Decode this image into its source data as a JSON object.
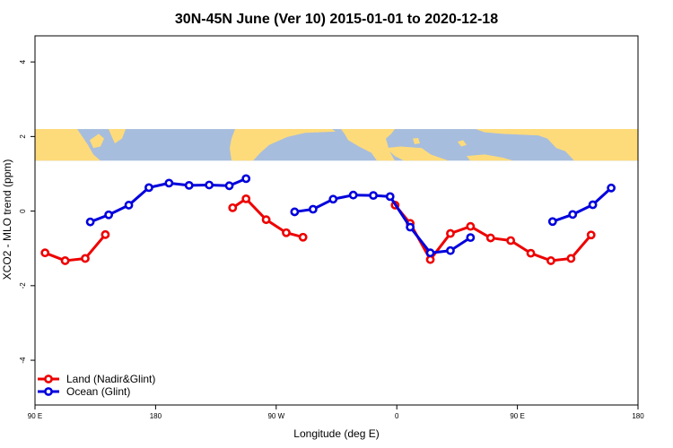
{
  "chart_data": {
    "type": "line",
    "title": "30N-45N June (Ver 10)   2015-01-01 to 2020-12-18",
    "xlabel": "Longitude (deg E)",
    "ylabel": "XCO2 - MLO trend (ppm)",
    "xlim": [
      90,
      450
    ],
    "ylim": [
      -5.2,
      4.7
    ],
    "x_ticks": [
      {
        "value": 90,
        "label": "90 E"
      },
      {
        "value": 162,
        "label": "180"
      },
      {
        "value": 234,
        "label": "90 W"
      },
      {
        "value": 306,
        "label": "0"
      },
      {
        "value": 378,
        "label": "90 E"
      },
      {
        "value": 450,
        "label": "180"
      }
    ],
    "y_ticks": [
      {
        "value": -4,
        "label": "-4"
      },
      {
        "value": -2,
        "label": "-2"
      },
      {
        "value": 0,
        "label": "0"
      },
      {
        "value": 2,
        "label": "2"
      },
      {
        "value": 4,
        "label": "4"
      }
    ],
    "map_band": {
      "ymin": 1.35,
      "ymax": 2.2,
      "ocean_color": "#a7bddd",
      "land_color": "#fedb7a"
    },
    "grid": false,
    "legend_position": "bottom-left",
    "series": [
      {
        "name": "Land (Nadir&Glint)",
        "color": "#ee0000",
        "segments": [
          [
            [
              96,
              -1.12
            ],
            [
              108,
              -1.33
            ],
            [
              120,
              -1.27
            ],
            [
              132,
              -0.63
            ]
          ],
          [
            [
              208,
              0.09
            ],
            [
              216,
              0.33
            ],
            [
              228,
              -0.23
            ],
            [
              240,
              -0.58
            ],
            [
              250,
              -0.7
            ]
          ],
          [
            [
              305,
              0.16
            ],
            [
              314,
              -0.33
            ],
            [
              326,
              -1.3
            ],
            [
              338,
              -0.6
            ],
            [
              350,
              -0.41
            ],
            [
              362,
              -0.72
            ],
            [
              374,
              -0.79
            ],
            [
              386,
              -1.13
            ],
            [
              398,
              -1.33
            ],
            [
              410,
              -1.27
            ],
            [
              422,
              -0.64
            ]
          ]
        ]
      },
      {
        "name": "Ocean (Glint)",
        "color": "#0000dd",
        "segments": [
          [
            [
              123,
              -0.29
            ],
            [
              134,
              -0.1
            ],
            [
              146,
              0.16
            ],
            [
              158,
              0.63
            ],
            [
              170,
              0.75
            ],
            [
              182,
              0.69
            ],
            [
              194,
              0.7
            ],
            [
              206,
              0.68
            ],
            [
              216,
              0.87
            ]
          ],
          [
            [
              245,
              -0.02
            ],
            [
              256,
              0.05
            ],
            [
              268,
              0.32
            ],
            [
              280,
              0.43
            ],
            [
              292,
              0.42
            ],
            [
              302,
              0.39
            ],
            [
              314,
              -0.43
            ],
            [
              326,
              -1.12
            ],
            [
              338,
              -1.06
            ],
            [
              350,
              -0.71
            ]
          ]
        ]
      },
      {
        "name": "Ocean (Glint)",
        "color": "#0000dd",
        "legend": false,
        "segments": [
          [
            [
              399,
              -0.28
            ],
            [
              411,
              -0.09
            ],
            [
              423,
              0.17
            ],
            [
              434,
              0.62
            ]
          ]
        ]
      }
    ]
  }
}
